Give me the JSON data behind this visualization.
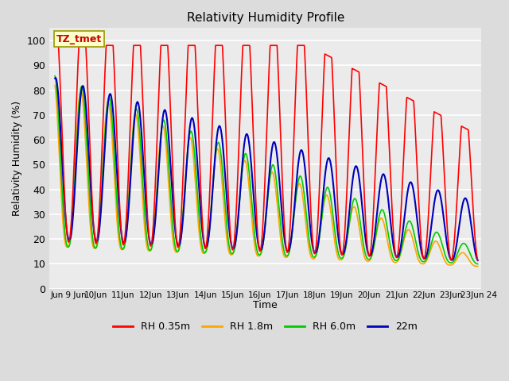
{
  "title": "Relativity Humidity Profile",
  "ylabel": "Relativity Humidity (%)",
  "xlabel": "Time",
  "ylim": [
    0,
    105
  ],
  "yticks": [
    0,
    10,
    20,
    30,
    40,
    50,
    60,
    70,
    80,
    90,
    100
  ],
  "bg_color": "#dcdcdc",
  "plot_bg_color": "#ebebeb",
  "grid_color": "#ffffff",
  "line_colors": {
    "rh035": "#ff0000",
    "rh18": "#ffa500",
    "rh60": "#00cc00",
    "rh22m": "#0000bb"
  },
  "line_widths": {
    "rh035": 1.2,
    "rh18": 1.2,
    "rh60": 1.2,
    "rh22m": 1.5
  },
  "legend_labels": [
    "RH 0.35m",
    "RH 1.8m",
    "RH 6.0m",
    "22m"
  ],
  "annotation_text": "TZ_tmet",
  "annotation_color": "#cc0000",
  "annotation_bg": "#ffffcc",
  "annotation_border": "#999900",
  "time_start": 8.5,
  "time_end": 23.97,
  "xlim_start": 8.3,
  "xlim_end": 24.1
}
